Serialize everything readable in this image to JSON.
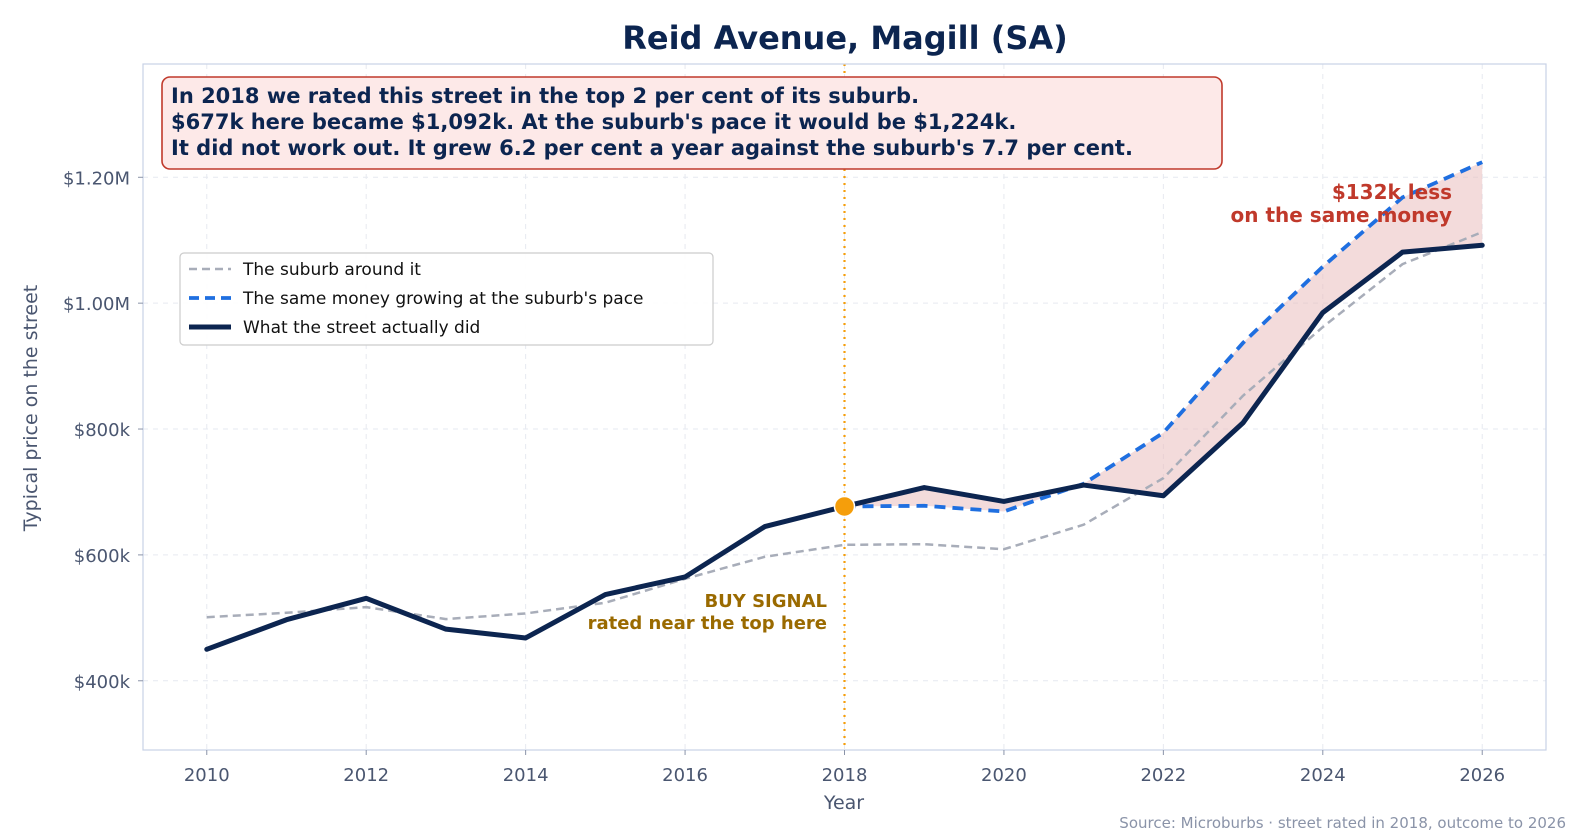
{
  "chart_data": {
    "type": "line",
    "title": "Reid Avenue, Magill (SA)",
    "xlabel": "Year",
    "ylabel": "Typical price on the street",
    "xlim": [
      2009.2,
      2026.8
    ],
    "ylim": [
      290000,
      1380000
    ],
    "grid": true,
    "x_ticks": [
      2010,
      2012,
      2014,
      2016,
      2018,
      2020,
      2022,
      2024,
      2026
    ],
    "y_ticks": [
      {
        "value": 400000,
        "label": "$400k"
      },
      {
        "value": 600000,
        "label": "$600k"
      },
      {
        "value": 800000,
        "label": "$800k"
      },
      {
        "value": 1000000,
        "label": "$1.00M"
      },
      {
        "value": 1200000,
        "label": "$1.20M"
      }
    ],
    "series": [
      {
        "name": "The suburb around it",
        "color": "#a8adb9",
        "style": "dashed",
        "x": [
          2010,
          2011,
          2012,
          2013,
          2014,
          2015,
          2016,
          2017,
          2018,
          2019,
          2020,
          2021,
          2022,
          2023,
          2024,
          2025,
          2026
        ],
        "values": [
          501000,
          508000,
          517000,
          498000,
          507000,
          524000,
          562000,
          597000,
          616000,
          617000,
          609000,
          648000,
          722000,
          853000,
          962000,
          1062000,
          1113000
        ]
      },
      {
        "name": "The same money growing at the suburb's pace",
        "color": "#1f6fe0",
        "style": "dashed",
        "x": [
          2018,
          2019,
          2020,
          2021,
          2022,
          2023,
          2024,
          2025,
          2026
        ],
        "values": [
          677000,
          678000,
          669000,
          713000,
          794000,
          937000,
          1058000,
          1168000,
          1224000
        ]
      },
      {
        "name": "What the street actually did",
        "color": "#0c2550",
        "style": "solid",
        "x": [
          2010,
          2011,
          2012,
          2013,
          2014,
          2015,
          2016,
          2017,
          2018,
          2019,
          2020,
          2021,
          2022,
          2023,
          2024,
          2025,
          2026
        ],
        "values": [
          450000,
          497000,
          531000,
          482000,
          468000,
          537000,
          565000,
          645000,
          677000,
          707000,
          685000,
          711000,
          694000,
          810000,
          985000,
          1081000,
          1092000
        ]
      }
    ],
    "signal": {
      "year": 2018,
      "value": 677000,
      "color": "#f59e0b"
    },
    "fill_color": "#e9bdbd",
    "legend_position": "upper-left"
  },
  "annotations": {
    "callout_lines": [
      "In 2018 we rated this street in the top 2 per cent of its suburb.",
      "$677k here became $1,092k. At the suburb's pace it would be $1,224k.",
      "It did not work out. It grew 6.2 per cent a year against the suburb's 7.7 per cent."
    ],
    "buy_signal_lines": [
      "BUY SIGNAL",
      "rated near the top here"
    ],
    "gap_lines": [
      "$132k less",
      "on the same money"
    ],
    "source": "Source: Microburbs · street rated in 2018, outcome to 2026"
  }
}
